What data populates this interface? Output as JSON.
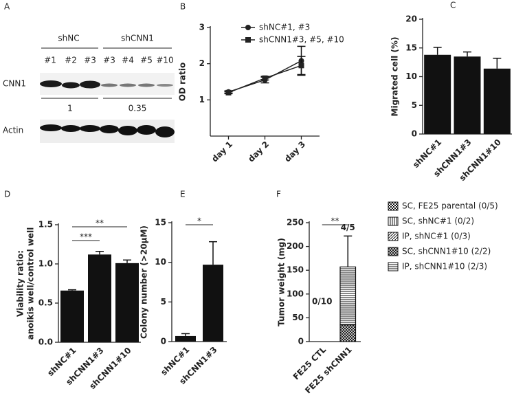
{
  "blot": {
    "panel": "A",
    "groups": [
      "shNC",
      "shCNN1"
    ],
    "lanes": [
      "#1",
      "#2",
      "#3",
      "#3",
      "#4",
      "#5",
      "#10"
    ],
    "rows": [
      "CNN1",
      "Actin"
    ],
    "ratios": [
      1,
      0.35
    ]
  },
  "chart_data": [
    {
      "type": "line",
      "panel": "B",
      "ylabel": "OD ratio",
      "categories": [
        "day 1",
        "day 2",
        "day 3"
      ],
      "ylim": [
        0,
        3
      ],
      "yticks": [
        1,
        2,
        3
      ],
      "series": [
        {
          "name": "shNC#1, #3",
          "marker": "circle",
          "color": "#222",
          "values": [
            1.22,
            1.55,
            2.08
          ],
          "errors": [
            0.03,
            0.08,
            0.4
          ]
        },
        {
          "name": "shCNN1#3, #5, #10",
          "marker": "square",
          "color": "#222",
          "values": [
            1.2,
            1.6,
            1.95
          ],
          "errors": [
            0.03,
            0.05,
            0.25
          ]
        }
      ]
    },
    {
      "type": "bar",
      "panel": "C",
      "ylabel": "Migrated cell (%)",
      "categories": [
        "shNC#1",
        "shCNN1#3",
        "shCNN1#10"
      ],
      "values": [
        13.8,
        13.5,
        11.4
      ],
      "errors": [
        1.3,
        0.8,
        1.8
      ],
      "color": "#111",
      "ylim": [
        0,
        20
      ],
      "yticks": [
        0,
        5,
        10,
        15,
        20
      ]
    },
    {
      "type": "bar",
      "panel": "D",
      "ylabel": [
        "Viability ratio:",
        "anoikis well/control well"
      ],
      "categories": [
        "shNC#1",
        "shCNN1#3",
        "shCNN1#10"
      ],
      "values": [
        0.66,
        1.12,
        1.01
      ],
      "errors": [
        0.01,
        0.04,
        0.04
      ],
      "color": "#111",
      "ylim": [
        0,
        1.5
      ],
      "yticks": [
        {
          "value": 0,
          "label": "0.0"
        },
        0.5,
        {
          "value": 1,
          "label": "1.0"
        },
        1.5
      ],
      "annotations": [
        {
          "text": "**",
          "from": 0,
          "to": 2
        },
        {
          "text": "***",
          "from": 0,
          "to": 1
        }
      ]
    },
    {
      "type": "bar",
      "panel": "E",
      "ylabel": "Colony number (>20μM)",
      "categories": [
        "shNC#1",
        "shCNN1#3"
      ],
      "values": [
        0.7,
        9.7
      ],
      "errors": [
        0.3,
        2.9
      ],
      "color": "#111",
      "ylim": [
        0,
        15
      ],
      "yticks": [
        0,
        5,
        10,
        15
      ],
      "annotations": [
        {
          "text": "*",
          "from": 0,
          "to": 1
        }
      ]
    },
    {
      "type": "stacked-bar",
      "panel": "F",
      "ylabel": "Tumor weight (mg)",
      "categories": [
        "FE25 CTL",
        "FE25 shCNN1"
      ],
      "ylim": [
        0,
        250
      ],
      "yticks": [
        0,
        50,
        100,
        150,
        200,
        250
      ],
      "series": [
        {
          "name": "SC, FE25 parental (0/5)",
          "pattern": "checker",
          "values": [
            0,
            0
          ]
        },
        {
          "name": "SC, shNC#1 (0/2)",
          "pattern": "vlines",
          "values": [
            0,
            0
          ]
        },
        {
          "name": "IP, shNC#1 (0/3)",
          "pattern": "diag",
          "values": [
            0,
            0
          ]
        },
        {
          "name": "SC, shCNN1#10 (2/2)",
          "pattern": "cross",
          "values": [
            0,
            35
          ]
        },
        {
          "name": "IP, shCNN1#10 (2/3)",
          "pattern": "hlines",
          "values": [
            0,
            122
          ]
        }
      ],
      "errors": [
        null,
        65
      ],
      "bar_labels": [
        "0/10",
        "4/5"
      ],
      "annotations": [
        {
          "text": "**",
          "from": 0,
          "to": 1
        }
      ]
    }
  ]
}
